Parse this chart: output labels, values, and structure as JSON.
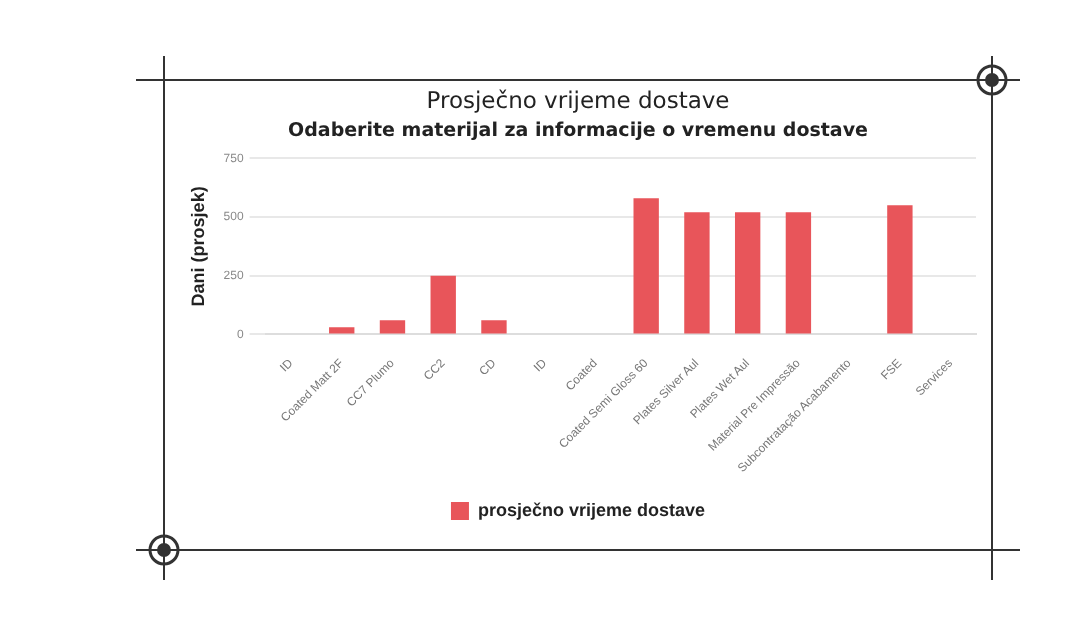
{
  "chart_data": {
    "type": "bar",
    "title": "Prosječno vrijeme dostave",
    "subtitle": "Odaberite materijal za informacije o vremenu dostave",
    "ylabel": "Dani (prosjek)",
    "categories": [
      "ID",
      "Coated Matt 2F",
      "CC7 Plumo",
      "CC2",
      "CD",
      "ID",
      "Coated",
      "Coated Semi Gloss 60",
      "Plates Silver Aul",
      "Plates Wet Aul",
      "Material Pre Impressão",
      "Subcontratação Acabamento",
      "FSE",
      "Services"
    ],
    "series": [
      {
        "name": "prosječno vrijeme dostave",
        "color": "#e8555a",
        "values": [
          0,
          30,
          60,
          250,
          60,
          0,
          0,
          580,
          520,
          520,
          520,
          0,
          550,
          0
        ]
      }
    ],
    "ylim": [
      0,
      750
    ],
    "yticks": [
      0,
      250,
      500,
      750
    ],
    "grid": "y",
    "legend": "bottom"
  }
}
